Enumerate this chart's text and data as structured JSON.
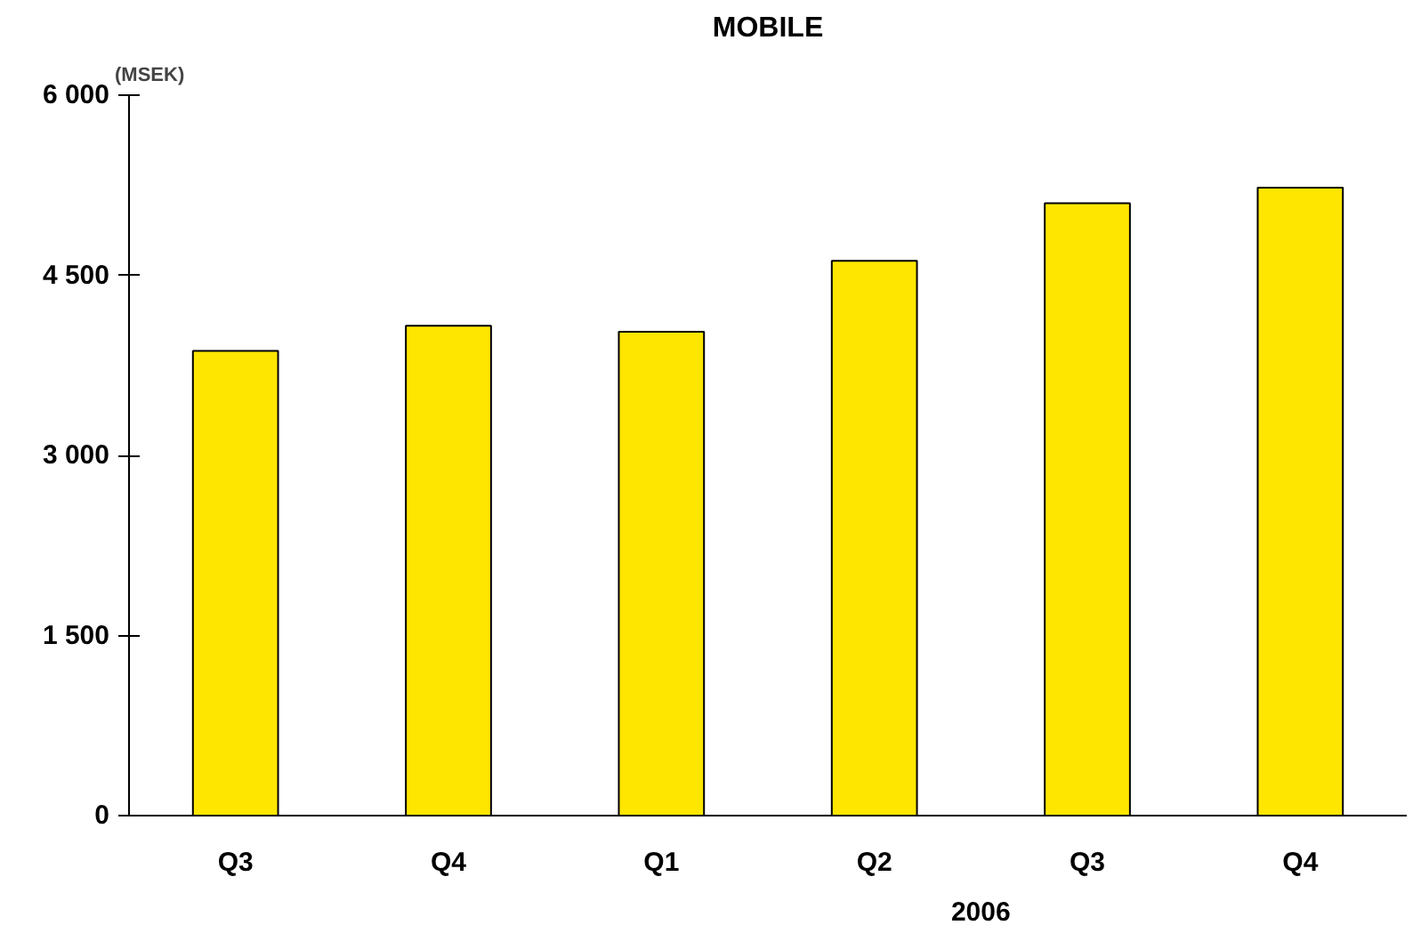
{
  "chart_data": {
    "type": "bar",
    "title": "MOBILE",
    "ylabel": "(MSEK)",
    "categories": [
      "Q3",
      "Q4",
      "Q1",
      "Q2",
      "Q3",
      "Q4"
    ],
    "values": [
      3870,
      4080,
      4030,
      4620,
      5100,
      5230
    ],
    "color": "#ffe600",
    "ylim": [
      0,
      6000
    ],
    "yticks": [
      {
        "value": 0,
        "label": "0"
      },
      {
        "value": 1500,
        "label": "1 500"
      },
      {
        "value": 3000,
        "label": "3 000"
      },
      {
        "value": 4500,
        "label": "4 500"
      },
      {
        "value": 6000,
        "label": "6 000"
      }
    ],
    "annotations": [
      "2006"
    ],
    "grid": false
  }
}
